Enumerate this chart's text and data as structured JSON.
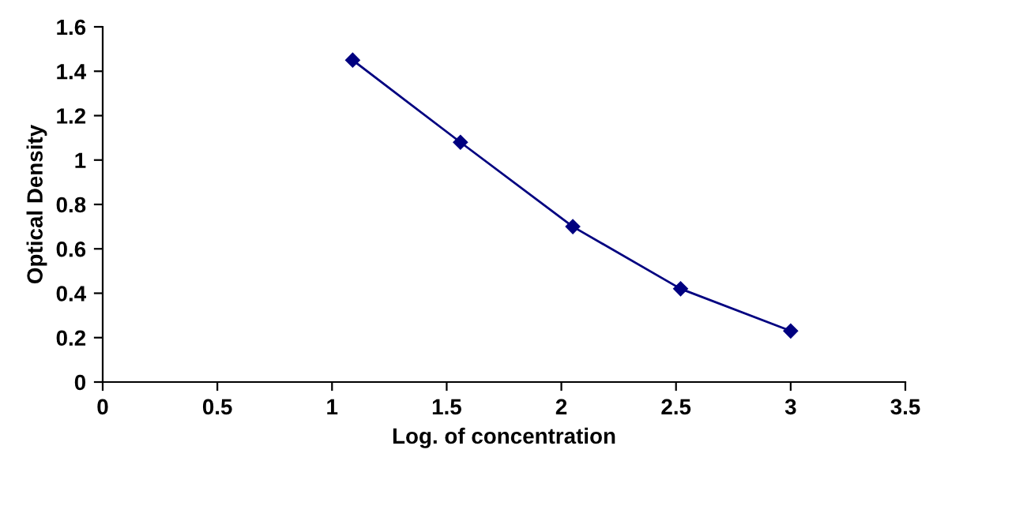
{
  "chart_data": {
    "type": "line",
    "xlabel": "Log. of concentration",
    "ylabel": "Optical Density",
    "x": [
      1.09,
      1.56,
      2.05,
      2.52,
      3.0
    ],
    "series": [
      {
        "color": "#000080",
        "values": [
          1.45,
          1.08,
          0.7,
          0.42,
          0.23
        ]
      }
    ],
    "xlim": [
      0,
      3.5
    ],
    "xticks": [
      0,
      0.5,
      1,
      1.5,
      2,
      2.5,
      3,
      3.5
    ],
    "ylim": [
      0,
      1.6
    ],
    "yticks": [
      0,
      0.2,
      0.4,
      0.6,
      0.8,
      1,
      1.2,
      1.4,
      1.6
    ],
    "marker": "diamond",
    "line_style": "solid",
    "grid": false,
    "legend": false
  }
}
